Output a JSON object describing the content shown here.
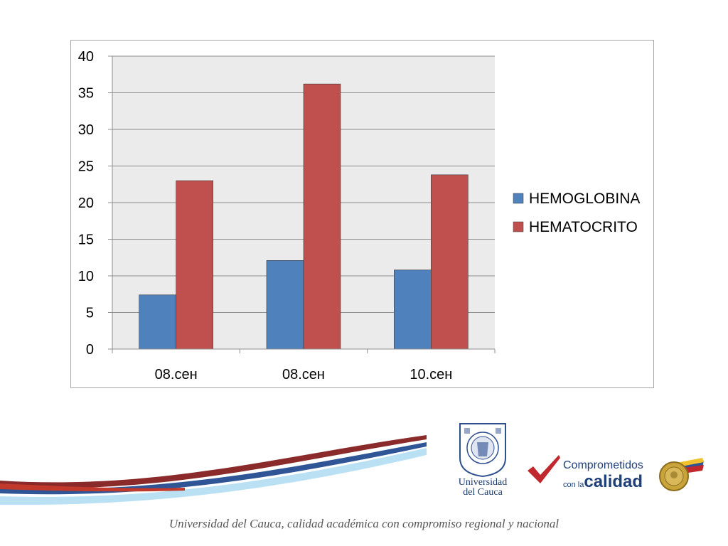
{
  "chart_data": {
    "type": "bar",
    "categories": [
      "08.сен",
      "08.сен",
      "10.сен"
    ],
    "series": [
      {
        "name": "HEMOGLOBINA",
        "values": [
          7.4,
          12.1,
          10.8
        ],
        "color": "#4f81bd"
      },
      {
        "name": "HEMATOCRITO",
        "values": [
          23.0,
          36.2,
          23.8
        ],
        "color": "#c0504d"
      }
    ],
    "ylim": [
      0,
      40
    ],
    "yticks": [
      0,
      5,
      10,
      15,
      20,
      25,
      30,
      35,
      40
    ],
    "grid": true,
    "legend": "right",
    "plot_background": "#ebebeb",
    "title": "",
    "xlabel": "",
    "ylabel": ""
  },
  "logo": {
    "university_line1": "Universidad",
    "university_line2": "del Cauca",
    "comprometidos": "Comprometidos",
    "con_la": "con la",
    "calidad": "calidad"
  },
  "footer": {
    "tagline": "Universidad del Cauca, calidad académica con compromiso regional y nacional"
  },
  "colors": {
    "swoosh_red": "#8b2a2a",
    "swoosh_blue": "#2f5597",
    "swoosh_light": "#7fc6e8",
    "check_red": "#c0282d",
    "brand_blue": "#1f3f78"
  }
}
